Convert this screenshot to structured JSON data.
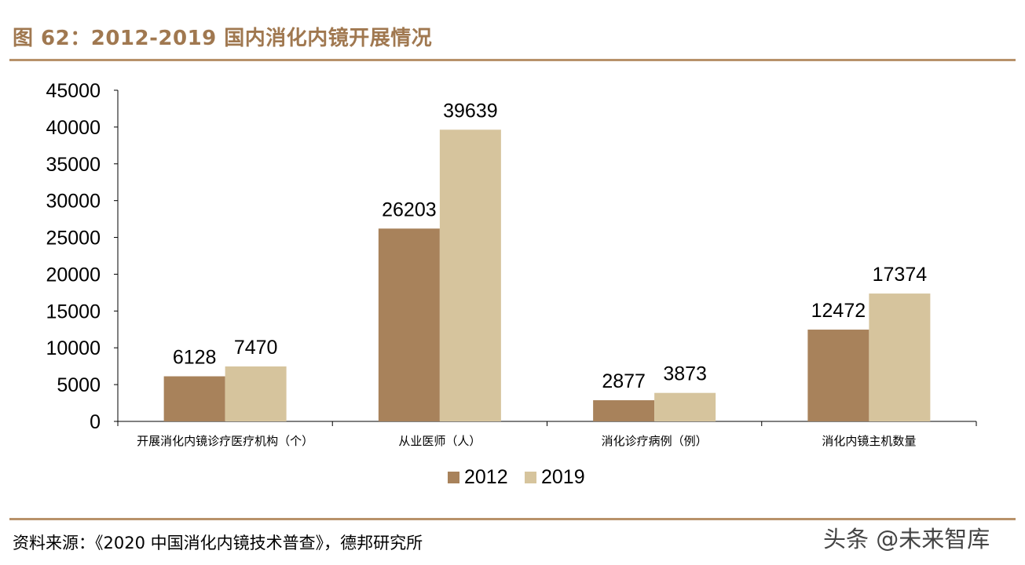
{
  "header": {
    "title": "图 62：2012-2019 国内消化内镜开展情况"
  },
  "footer": {
    "source": "资料来源：《2020 中国消化内镜技术普查》，德邦研究所",
    "watermark": "头条 @未来智库"
  },
  "colors": {
    "accent": "#b8926a",
    "title": "#a07850",
    "series_2012": "#a8825b",
    "series_2019": "#d6c49d"
  },
  "chart_data": {
    "type": "bar",
    "title": "",
    "xlabel": "",
    "ylabel": "",
    "categories": [
      "开展消化内镜诊疗医疗机构（个）",
      "从业医师（人）",
      "消化诊疗病例（例）",
      "消化内镜主机数量"
    ],
    "series": [
      {
        "name": "2012",
        "values": [
          6128,
          26203,
          2877,
          12472
        ]
      },
      {
        "name": "2019",
        "values": [
          7470,
          39639,
          3873,
          17374
        ]
      }
    ],
    "ylim": [
      0,
      45000
    ],
    "yticks": [
      0,
      5000,
      10000,
      15000,
      20000,
      25000,
      30000,
      35000,
      40000,
      45000
    ],
    "grid": false,
    "legend": "bottom-center",
    "data_labels": true
  }
}
